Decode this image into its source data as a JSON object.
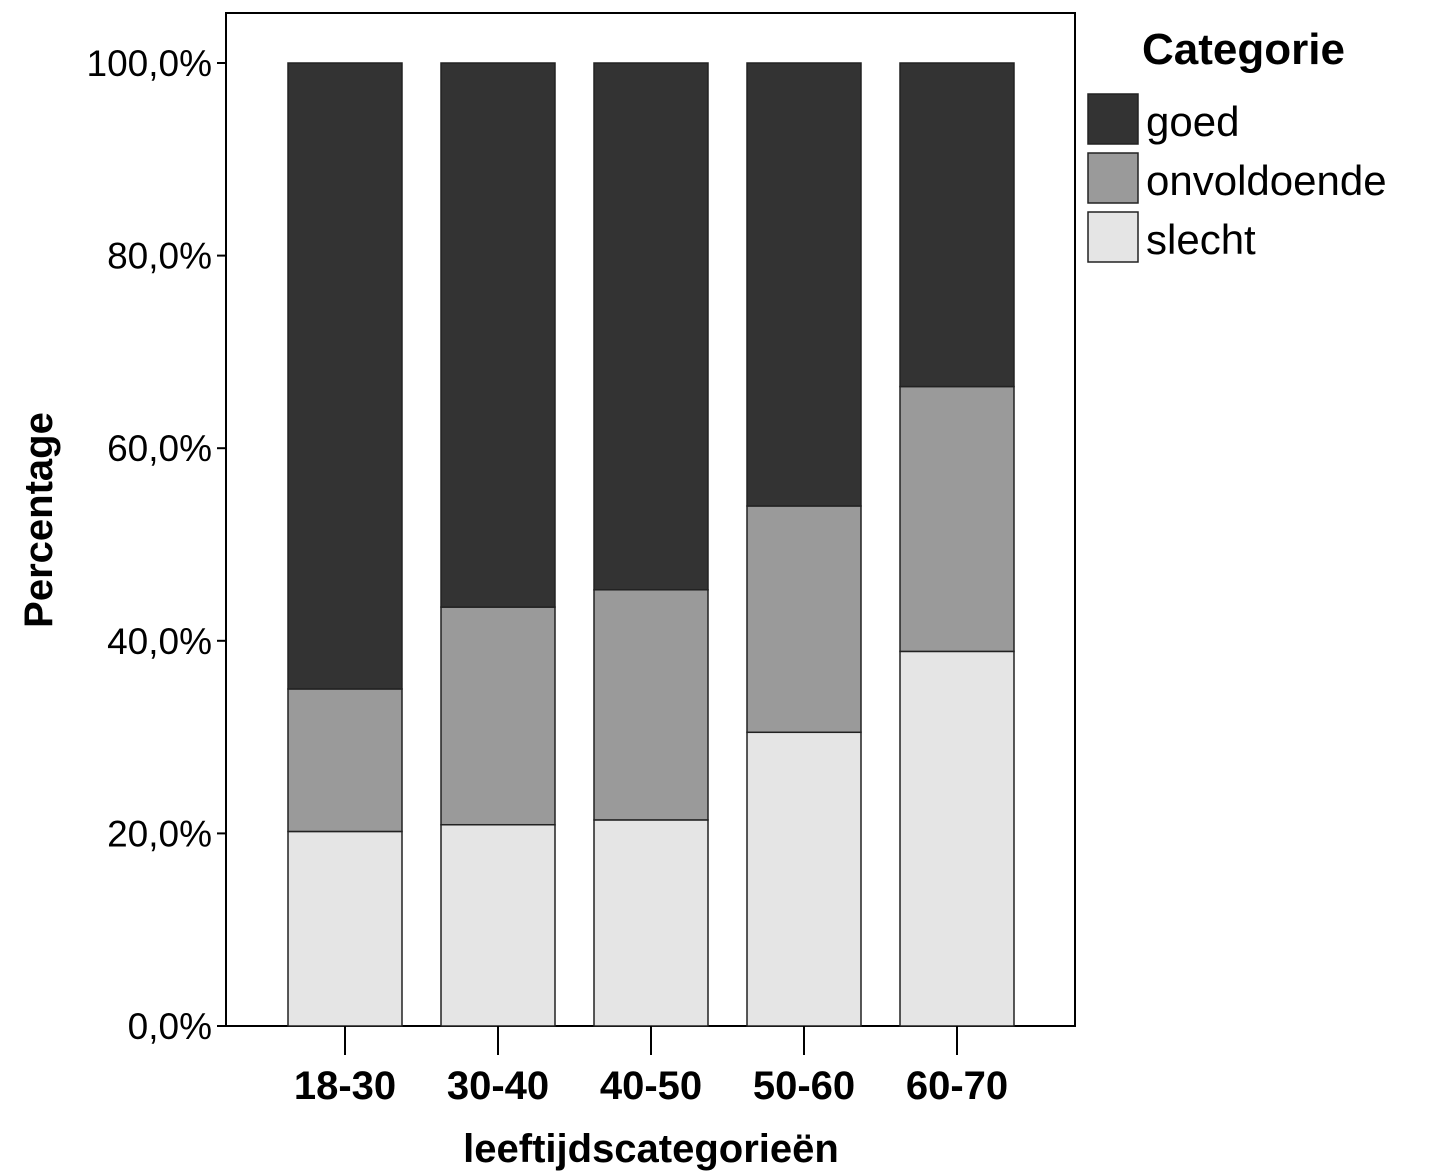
{
  "chart_data": {
    "type": "bar",
    "stacked": true,
    "title": "",
    "xlabel": "leeftijdscategorieën",
    "ylabel": "Percentage",
    "ylim": [
      0,
      100
    ],
    "yticks": [
      0,
      20,
      40,
      60,
      80,
      100
    ],
    "ytick_labels": [
      "0,0%",
      "20,0%",
      "40,0%",
      "60,0%",
      "80,0%",
      "100,0%"
    ],
    "categories": [
      "18-30",
      "30-40",
      "40-50",
      "50-60",
      "60-70"
    ],
    "series": [
      {
        "name": "slecht",
        "color": "#e5e5e5",
        "values": [
          20.2,
          20.9,
          21.4,
          30.5,
          38.9
        ]
      },
      {
        "name": "onvoldoende",
        "color": "#9a9a9a",
        "values": [
          14.8,
          22.6,
          23.9,
          23.5,
          27.5
        ]
      },
      {
        "name": "goed",
        "color": "#333333",
        "values": [
          65.0,
          56.5,
          54.7,
          46.0,
          33.6
        ]
      }
    ],
    "legend": {
      "title": "Categorie",
      "position": "top-right",
      "entries": [
        "goed",
        "onvoldoende",
        "slecht"
      ]
    },
    "grid": false
  }
}
